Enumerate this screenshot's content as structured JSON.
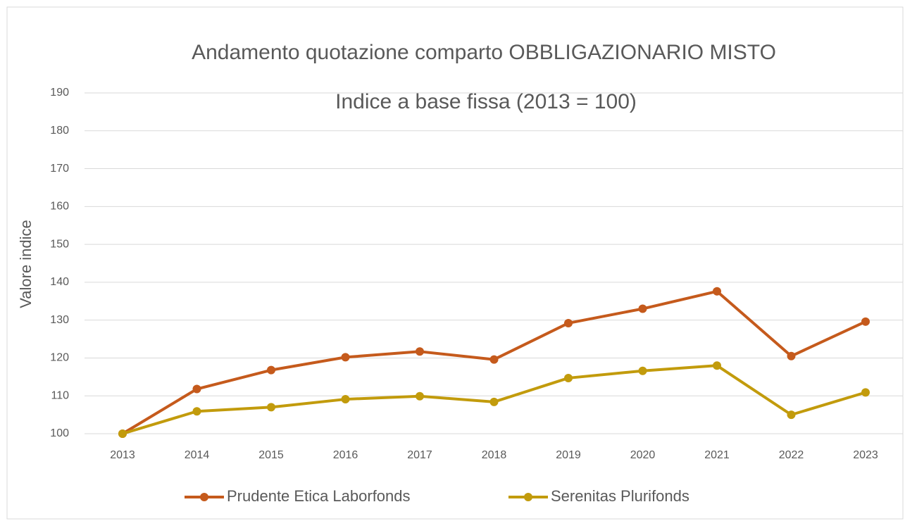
{
  "chart_data": {
    "type": "line",
    "title": "Andamento quotazione comparto OBBLIGAZIONARIO MISTO",
    "subtitle": "Indice a base fissa (2013 = 100)",
    "y_label": "Valore indice",
    "categories": [
      "2013",
      "2014",
      "2015",
      "2016",
      "2017",
      "2018",
      "2019",
      "2020",
      "2021",
      "2022",
      "2023"
    ],
    "series": [
      {
        "name": "Prudente Etica Laborfonds",
        "color": "#c55a1c",
        "values": [
          100,
          111.8,
          116.8,
          120.2,
          121.7,
          119.6,
          129.2,
          133.0,
          137.6,
          120.5,
          129.6
        ]
      },
      {
        "name": "Serenitas Plurifonds",
        "color": "#c29b0c",
        "values": [
          100,
          105.9,
          107.0,
          109.1,
          109.9,
          108.4,
          114.7,
          116.6,
          118.0,
          105.0,
          110.9
        ]
      }
    ],
    "ylim": [
      100,
      190
    ],
    "yticks": [
      100,
      110,
      120,
      130,
      140,
      150,
      160,
      170,
      180,
      190
    ],
    "grid": true,
    "legend": "bottom"
  }
}
